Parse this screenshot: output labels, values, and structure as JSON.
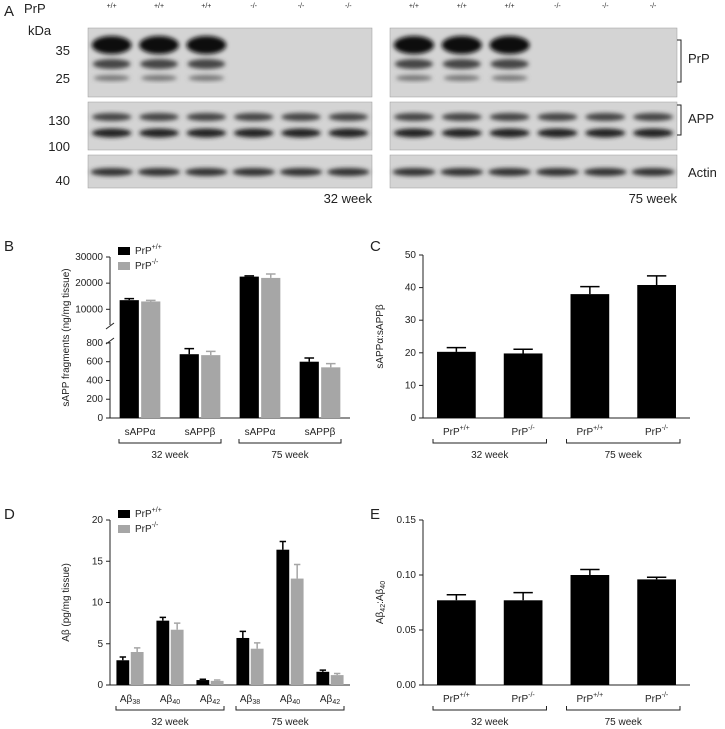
{
  "panel_labels": [
    "A",
    "B",
    "C",
    "D",
    "E"
  ],
  "blot": {
    "y_label": "PrP",
    "unit": "kDa",
    "markers": [
      35,
      25,
      130,
      100,
      40
    ],
    "bands": [
      "PrP",
      "APP",
      "Actin"
    ],
    "panels": [
      {
        "lanes": [
          "+/+",
          "+/+",
          "+/+",
          "-/-",
          "-/-",
          "-/-"
        ],
        "label": "32 week"
      },
      {
        "lanes": [
          "+/+",
          "+/+",
          "+/+",
          "-/-",
          "-/-",
          "-/-"
        ],
        "label": "75 week"
      }
    ]
  },
  "chart_data": [
    {
      "type": "bar",
      "y_label": "sAPP fragments (ng/mg tissue)",
      "categories": [
        "sAPPα",
        "sAPPβ",
        "sAPPα",
        "sAPPβ"
      ],
      "groups": [
        "32 week",
        "75 week"
      ],
      "segments": [
        {
          "ylim": [
            0,
            810
          ],
          "yticks": [
            0,
            200,
            400,
            600,
            800
          ]
        },
        {
          "ylim": [
            4000,
            30000
          ],
          "yticks": [
            10000,
            20000,
            30000
          ]
        }
      ],
      "legend": "upper left",
      "series": [
        {
          "name": "PrP+/+",
          "color": "#000000",
          "values": [
            13500,
            680,
            22500,
            600
          ],
          "errors": [
            600,
            60,
            300,
            40
          ]
        },
        {
          "name": "PrP-/-",
          "color": "#a6a6a6",
          "values": [
            13000,
            670,
            22000,
            540
          ],
          "errors": [
            400,
            40,
            1500,
            40
          ]
        }
      ]
    },
    {
      "type": "bar",
      "y_label": "sAPPα:sAPPβ",
      "categories": [
        "PrP+/+",
        "PrP-/-",
        "PrP+/+",
        "PrP-/-"
      ],
      "groups": [
        "32 week",
        "75 week"
      ],
      "ylim": [
        0,
        50
      ],
      "yticks": [
        0,
        10,
        20,
        30,
        40,
        50
      ],
      "color": "#000000",
      "values": [
        20.3,
        19.8,
        38,
        40.8
      ],
      "errors": [
        1.3,
        1.3,
        2.3,
        2.8
      ]
    },
    {
      "type": "bar",
      "y_label": "Aβ (pg/mg tissue)",
      "categories": [
        "Aβ38",
        "Aβ40",
        "Aβ42",
        "Aβ38",
        "Aβ40",
        "Aβ42"
      ],
      "groups": [
        "32 week",
        "75 week"
      ],
      "ylim": [
        0,
        20
      ],
      "yticks": [
        0,
        5,
        10,
        15,
        20
      ],
      "legend": "upper left",
      "series": [
        {
          "name": "PrP+/+",
          "color": "#000000",
          "values": [
            3.0,
            7.8,
            0.6,
            5.7,
            16.4,
            1.6
          ],
          "errors": [
            0.4,
            0.4,
            0.1,
            0.8,
            1.0,
            0.2
          ]
        },
        {
          "name": "PrP-/-",
          "color": "#a6a6a6",
          "values": [
            4.0,
            6.7,
            0.5,
            4.4,
            12.9,
            1.2
          ],
          "errors": [
            0.5,
            0.8,
            0.1,
            0.7,
            1.7,
            0.2
          ]
        }
      ]
    },
    {
      "type": "bar",
      "y_label": "Aβ42:Aβ40",
      "categories": [
        "PrP+/+",
        "PrP-/-",
        "PrP+/+",
        "PrP-/-"
      ],
      "groups": [
        "32 week",
        "75 week"
      ],
      "ylim": [
        0,
        0.15
      ],
      "yticks": [
        {
          "value": 0,
          "label": "0.00"
        },
        {
          "value": 0.05,
          "label": "0.05"
        },
        {
          "value": 0.1,
          "label": "0.10"
        },
        {
          "value": 0.15,
          "label": "0.15"
        }
      ],
      "color": "#000000",
      "values": [
        0.077,
        0.077,
        0.1,
        0.096
      ],
      "errors": [
        0.005,
        0.007,
        0.005,
        0.002
      ]
    }
  ]
}
